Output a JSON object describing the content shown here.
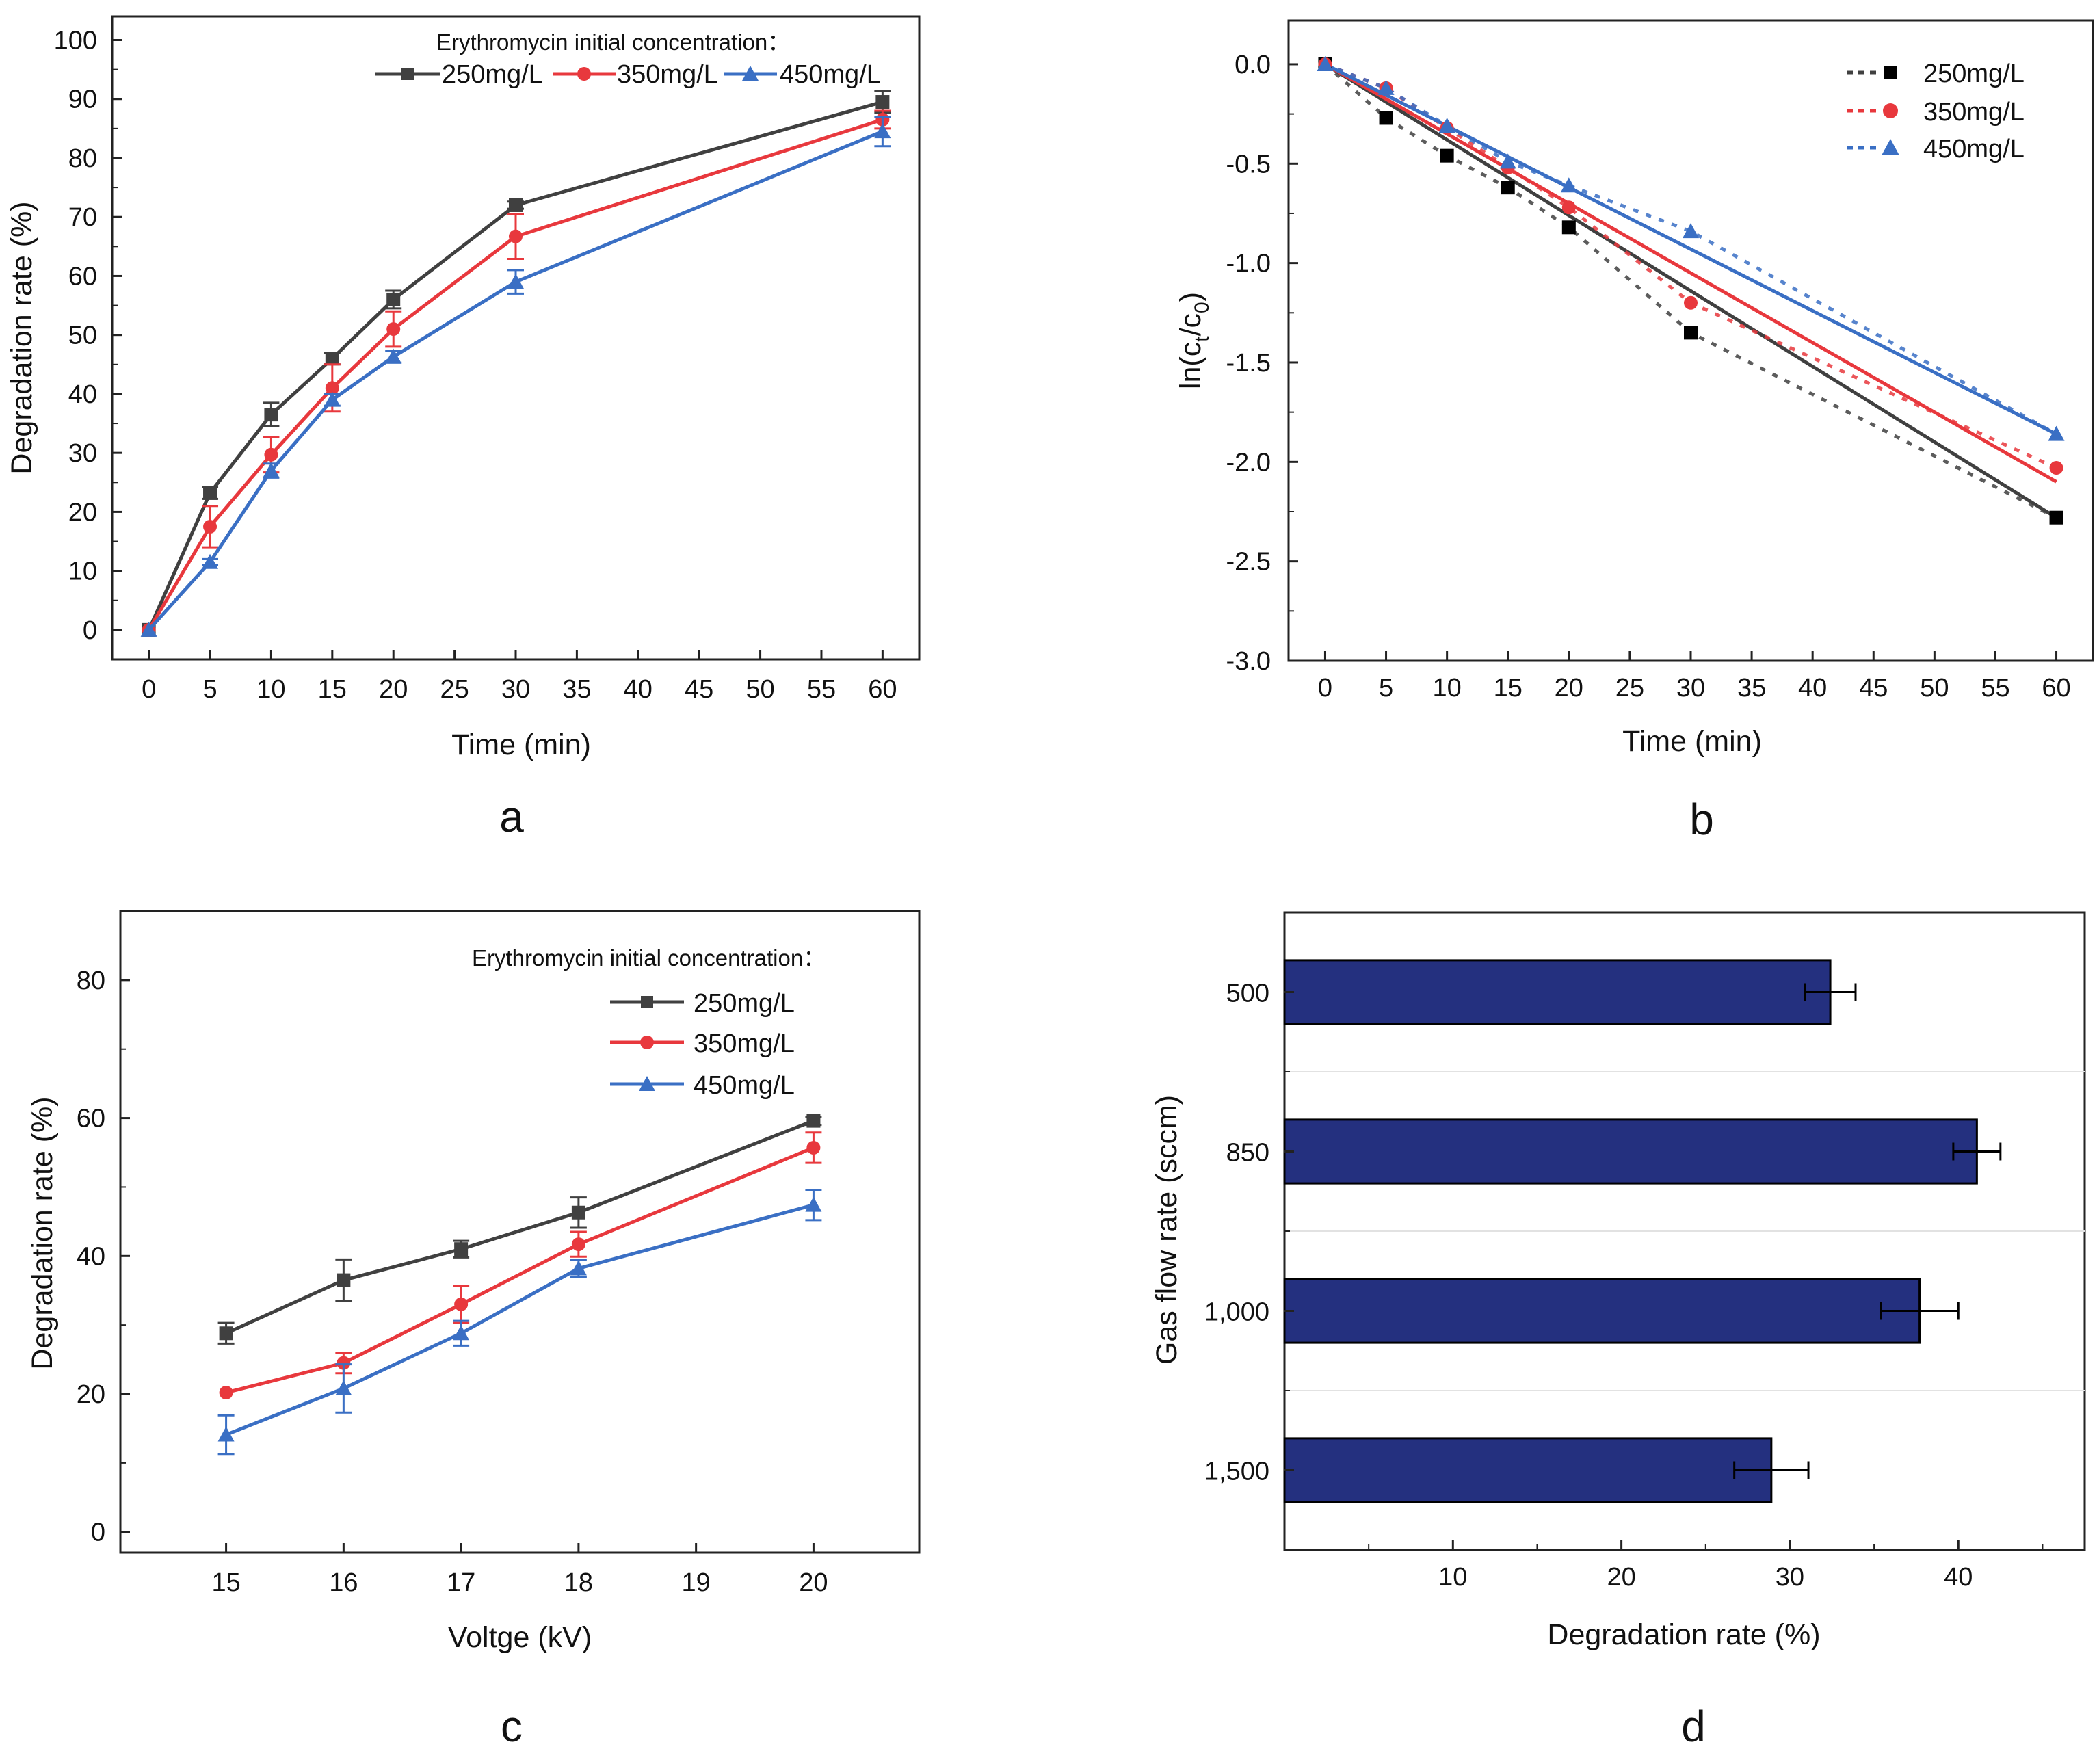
{
  "chart_data": [
    {
      "panel": "a",
      "type": "line",
      "xlabel": "Time (min)",
      "ylabel": "Degradation rate (%)",
      "xlim": [
        -3,
        63
      ],
      "ylim": [
        -5,
        104
      ],
      "xticks": [
        "0",
        "5",
        "10",
        "15",
        "20",
        "25",
        "30",
        "35",
        "40",
        "45",
        "50",
        "55",
        "60"
      ],
      "yticks": [
        "0",
        "10",
        "20",
        "30",
        "40",
        "50",
        "60",
        "70",
        "80",
        "90",
        "100"
      ],
      "legend_title": "Erythromycin initial concentration：",
      "legend_position": "top-right",
      "x": [
        0,
        5,
        10,
        15,
        20,
        30,
        60
      ],
      "series": [
        {
          "name": "250mg/L",
          "color": "#404040",
          "marker": "square",
          "values": [
            0,
            23.2,
            36.5,
            46,
            56,
            72,
            89.5
          ],
          "errors": [
            0,
            1,
            2,
            1,
            1.5,
            0.6,
            1.8
          ]
        },
        {
          "name": "350mg/L",
          "color": "#e8383d",
          "marker": "circle",
          "values": [
            0,
            17.5,
            29.7,
            41,
            51,
            66.7,
            86.5
          ],
          "errors": [
            0,
            3.5,
            3,
            4,
            3,
            3.8,
            1.5
          ]
        },
        {
          "name": "450mg/L",
          "color": "#3a6fc4",
          "marker": "triangle",
          "values": [
            0,
            11.5,
            27,
            39,
            46.3,
            59,
            84.5
          ],
          "errors": [
            0,
            0.5,
            1.2,
            1,
            1,
            2,
            2.5
          ]
        }
      ]
    },
    {
      "panel": "b",
      "type": "scatter",
      "xlabel": "Time (min)",
      "ylabel": "ln(c_t/c_0)",
      "ylabel_parts": {
        "pre": "ln(c",
        "sub1": "t",
        "mid": "/c",
        "sub2": "0",
        "post": ")"
      },
      "xlim": [
        -3,
        63
      ],
      "ylim": [
        -3.0,
        0.22
      ],
      "xticks": [
        "0",
        "5",
        "10",
        "15",
        "20",
        "25",
        "30",
        "35",
        "40",
        "45",
        "50",
        "55",
        "60"
      ],
      "yticks": [
        "0.0",
        "-0.5",
        "-1.0",
        "-1.5",
        "-2.0",
        "-2.5",
        "-3.0"
      ],
      "legend_position": "top-right",
      "x": [
        0,
        5,
        10,
        15,
        20,
        30,
        60
      ],
      "series": [
        {
          "name": "250mg/L",
          "color": "#000000",
          "fit_color": "#404040",
          "marker": "square",
          "values": [
            0,
            -0.27,
            -0.46,
            -0.62,
            -0.82,
            -1.35,
            -2.28
          ],
          "fit_end": -2.28
        },
        {
          "name": "350mg/L",
          "color": "#e8383d",
          "fit_color": "#e8383d",
          "marker": "circle",
          "values": [
            0,
            -0.12,
            -0.32,
            -0.52,
            -0.72,
            -1.2,
            -2.03
          ],
          "fit_end": -2.1
        },
        {
          "name": "450mg/L",
          "color": "#3a6fc4",
          "fit_color": "#3a6fc4",
          "marker": "triangle",
          "values": [
            0,
            -0.12,
            -0.31,
            -0.49,
            -0.61,
            -0.84,
            -1.86
          ],
          "fit_end": -1.86
        }
      ]
    },
    {
      "panel": "c",
      "type": "line",
      "xlabel": "Voltge (kV)",
      "ylabel": "Degradation rate (%)",
      "xlim": [
        14.1,
        20.9
      ],
      "ylim": [
        -3,
        90
      ],
      "xticks": [
        "15",
        "16",
        "17",
        "18",
        "19",
        "20"
      ],
      "yticks": [
        "0",
        "20",
        "40",
        "60",
        "80"
      ],
      "legend_title": "Erythromycin initial concentration：",
      "legend_position": "top-right",
      "x": [
        15,
        16,
        17,
        18,
        20
      ],
      "series": [
        {
          "name": "250mg/L",
          "color": "#404040",
          "marker": "square",
          "values": [
            28.8,
            36.5,
            41,
            46.3,
            59.6
          ],
          "errors": [
            1.5,
            3,
            1.2,
            2.2,
            0.6
          ]
        },
        {
          "name": "350mg/L",
          "color": "#e8383d",
          "marker": "circle",
          "values": [
            20.2,
            24.5,
            33,
            41.7,
            55.7
          ],
          "errors": [
            0,
            1.5,
            2.7,
            1.8,
            2.2
          ]
        },
        {
          "name": "450mg/L",
          "color": "#3a6fc4",
          "marker": "triangle",
          "values": [
            14.1,
            20.8,
            28.8,
            38.2,
            47.4
          ],
          "errors": [
            2.8,
            3.5,
            1.8,
            1.2,
            2.2
          ]
        }
      ]
    },
    {
      "panel": "d",
      "type": "bar",
      "orientation": "horizontal",
      "xlabel": "Degradation rate (%)",
      "ylabel": "Gas flow rate (sccm)",
      "xlim": [
        0,
        47.5
      ],
      "xticks": [
        "10",
        "20",
        "30",
        "40"
      ],
      "categories": [
        "500",
        "850",
        "1,000",
        "1,500"
      ],
      "values": [
        32.4,
        41.1,
        37.7,
        28.9
      ],
      "errors": [
        1.5,
        1.4,
        2.3,
        2.2
      ],
      "bar_color": "#24307f"
    }
  ],
  "panel_labels": {
    "a": "a",
    "b": "b",
    "c": "c",
    "d": "d"
  },
  "legend_labels": [
    "250mg/L",
    "350mg/L",
    "450mg/L"
  ],
  "colors": {
    "dark": "#404040",
    "red": "#e8383d",
    "blue": "#3a6fc4",
    "navy": "#24307f"
  }
}
